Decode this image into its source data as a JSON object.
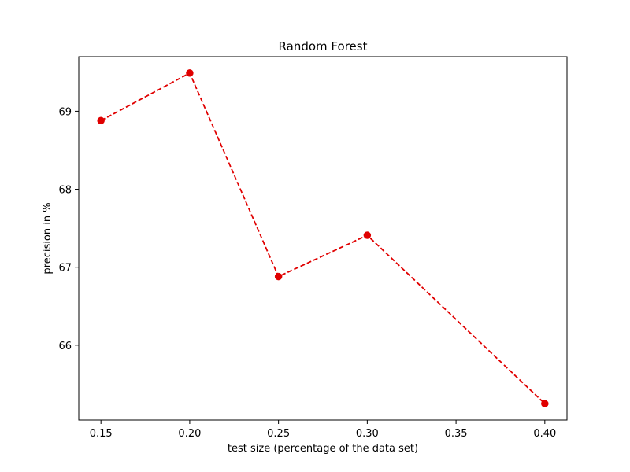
{
  "chart_data": {
    "type": "line",
    "title": "Random Forest",
    "xlabel": "test size (percentage of the data set)",
    "ylabel": "precision in %",
    "x": [
      0.15,
      0.2,
      0.25,
      0.3,
      0.4
    ],
    "series": [
      {
        "values": [
          68.88,
          69.49,
          66.88,
          67.41,
          65.25
        ],
        "color": "#e00000",
        "line_style": "dashed",
        "marker": "circle"
      }
    ],
    "xlim": [
      0.1375,
      0.4125
    ],
    "ylim": [
      65.04,
      69.7
    ],
    "xticks": [
      0.15,
      0.2,
      0.25,
      0.3,
      0.35,
      0.4
    ],
    "xtick_labels": [
      "0.15",
      "0.20",
      "0.25",
      "0.30",
      "0.35",
      "0.40"
    ],
    "yticks": [
      66,
      67,
      68,
      69
    ],
    "ytick_labels": [
      "66",
      "67",
      "68",
      "69"
    ],
    "grid": false,
    "legend": "none"
  }
}
